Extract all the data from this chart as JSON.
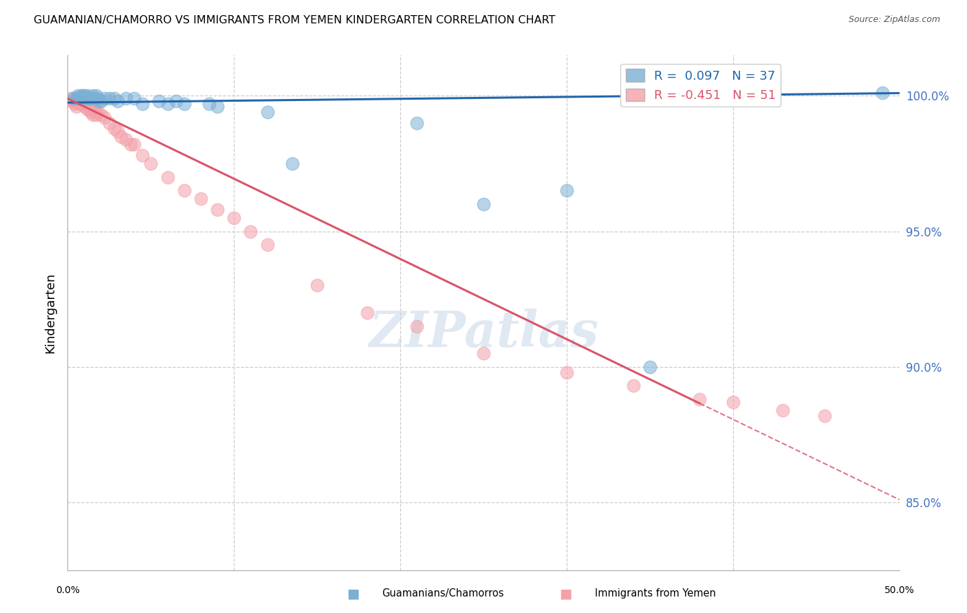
{
  "title": "GUAMANIAN/CHAMORRO VS IMMIGRANTS FROM YEMEN KINDERGARTEN CORRELATION CHART",
  "source": "Source: ZipAtlas.com",
  "ylabel": "Kindergarten",
  "ytick_labels": [
    "100.0%",
    "95.0%",
    "90.0%",
    "85.0%"
  ],
  "ytick_values": [
    1.0,
    0.95,
    0.9,
    0.85
  ],
  "xlim": [
    0.0,
    0.5
  ],
  "ylim": [
    0.825,
    1.015
  ],
  "blue_color": "#7bafd4",
  "pink_color": "#f4a0a8",
  "blue_line_color": "#2166ac",
  "pink_line_color": "#d9546a",
  "watermark": "ZIPatlas",
  "blue_scatter_x": [
    0.003,
    0.005,
    0.006,
    0.007,
    0.008,
    0.009,
    0.01,
    0.011,
    0.012,
    0.013,
    0.014,
    0.015,
    0.016,
    0.017,
    0.018,
    0.019,
    0.02,
    0.022,
    0.025,
    0.028,
    0.03,
    0.035,
    0.04,
    0.045,
    0.055,
    0.06,
    0.065,
    0.07,
    0.085,
    0.09,
    0.12,
    0.135,
    0.21,
    0.25,
    0.3,
    0.35,
    0.49
  ],
  "blue_scatter_y": [
    0.999,
    0.999,
    1.0,
    0.999,
    1.0,
    1.0,
    1.0,
    0.999,
    1.0,
    0.999,
    0.999,
    1.0,
    0.999,
    1.0,
    0.999,
    0.998,
    0.998,
    0.999,
    0.999,
    0.999,
    0.998,
    0.999,
    0.999,
    0.997,
    0.998,
    0.997,
    0.998,
    0.997,
    0.997,
    0.996,
    0.994,
    0.975,
    0.99,
    0.96,
    0.965,
    0.9,
    1.001
  ],
  "pink_scatter_x": [
    0.002,
    0.003,
    0.004,
    0.005,
    0.006,
    0.007,
    0.008,
    0.009,
    0.01,
    0.011,
    0.012,
    0.013,
    0.014,
    0.015,
    0.016,
    0.017,
    0.018,
    0.02,
    0.022,
    0.025,
    0.028,
    0.03,
    0.032,
    0.035,
    0.038,
    0.04,
    0.045,
    0.05,
    0.06,
    0.07,
    0.08,
    0.09,
    0.1,
    0.11,
    0.12,
    0.15,
    0.18,
    0.21,
    0.25,
    0.3,
    0.34,
    0.38,
    0.4,
    0.43,
    0.455,
    0.003,
    0.005,
    0.008,
    0.01,
    0.012,
    0.015
  ],
  "pink_scatter_y": [
    0.999,
    0.998,
    0.997,
    0.999,
    0.998,
    0.997,
    0.998,
    0.997,
    0.998,
    0.997,
    0.996,
    0.995,
    0.994,
    0.996,
    0.995,
    0.993,
    0.994,
    0.993,
    0.992,
    0.99,
    0.988,
    0.987,
    0.985,
    0.984,
    0.982,
    0.982,
    0.978,
    0.975,
    0.97,
    0.965,
    0.962,
    0.958,
    0.955,
    0.95,
    0.945,
    0.93,
    0.92,
    0.915,
    0.905,
    0.898,
    0.893,
    0.888,
    0.887,
    0.884,
    0.882,
    0.998,
    0.996,
    0.997,
    0.996,
    0.995,
    0.993
  ],
  "blue_line_x0": 0.0,
  "blue_line_y0": 0.9975,
  "blue_line_x1": 0.5,
  "blue_line_y1": 1.001,
  "pink_line_x0": 0.0,
  "pink_line_y0": 0.999,
  "pink_line_x1": 0.5,
  "pink_line_y1": 0.851
}
